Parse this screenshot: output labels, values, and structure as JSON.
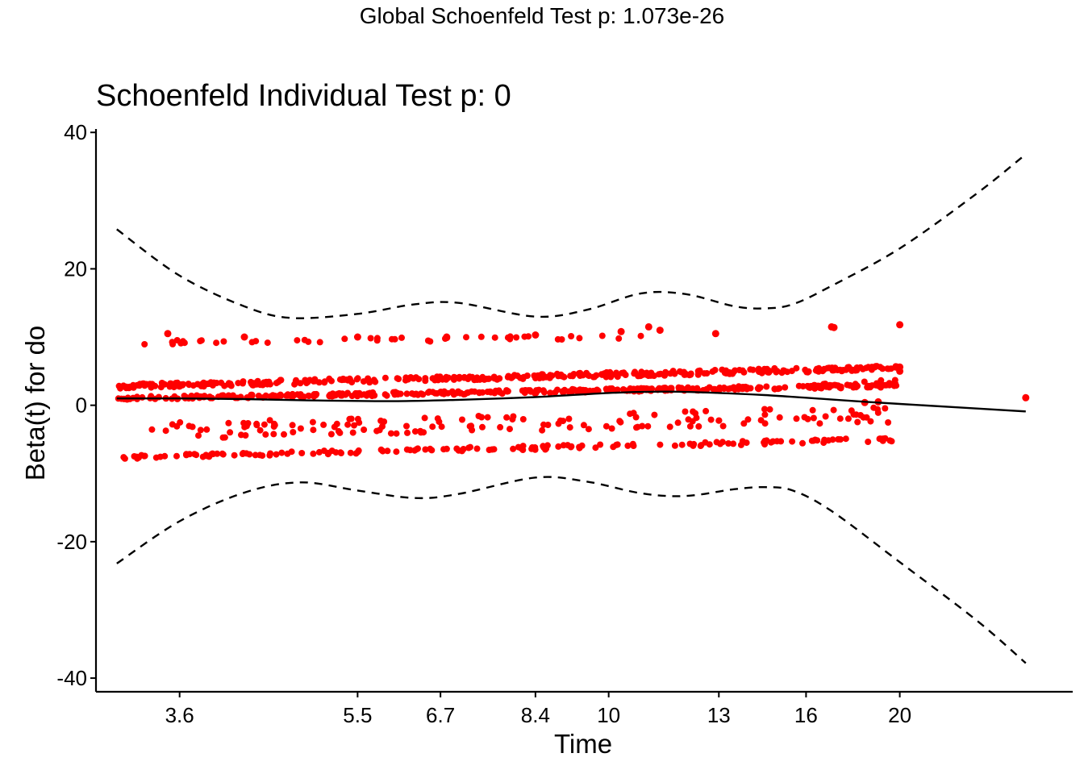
{
  "suptitle": "Global Schoenfeld Test p: 1.073e-26",
  "chart_data": {
    "type": "scatter",
    "title": "Schoenfeld Individual Test p: 0",
    "xlabel": "Time",
    "ylabel": "Beta(t) for do",
    "xscale": "log",
    "xlim": [
      2.95,
      28.5
    ],
    "ylim": [
      -42,
      40.5
    ],
    "x_ticks": [
      3.6,
      5.5,
      6.7,
      8.4,
      10,
      13,
      16,
      20
    ],
    "x_tick_labels": [
      "3.6",
      "5.5",
      "6.7",
      "8.4",
      "10",
      "13",
      "16",
      "20"
    ],
    "y_ticks": [
      -40,
      -20,
      0,
      20,
      40
    ],
    "y_tick_labels": [
      "-40",
      "-20",
      "0",
      "20",
      "40"
    ],
    "grid": false,
    "colors": {
      "points": "#ff0000",
      "fit": "#000000",
      "band": "#000000",
      "axis": "#000000"
    },
    "fit_curve": {
      "name": "",
      "x": [
        3.1,
        3.6,
        4.2,
        5.0,
        6.0,
        7.0,
        8.4,
        10.0,
        11.5,
        13.0,
        14.5,
        16.0,
        18.0,
        20.0,
        27.0
      ],
      "y": [
        1.0,
        1.0,
        0.9,
        0.7,
        0.6,
        0.8,
        1.2,
        1.8,
        2.0,
        1.8,
        1.5,
        1.1,
        0.6,
        0.2,
        -0.9
      ]
    },
    "band_upper": {
      "x": [
        3.1,
        3.6,
        4.2,
        4.7,
        5.5,
        6.3,
        7.0,
        8.4,
        9.5,
        10.8,
        12.0,
        13.5,
        14.5,
        15.5,
        17.0,
        20.0,
        24.0,
        27.0
      ],
      "y": [
        25.8,
        19.0,
        14.5,
        12.8,
        13.4,
        14.8,
        15.0,
        13.0,
        14.0,
        16.4,
        16.3,
        14.5,
        14.2,
        14.8,
        17.5,
        23.0,
        31.0,
        36.8
      ]
    },
    "band_lower": {
      "x": [
        3.1,
        3.6,
        4.2,
        4.8,
        5.5,
        6.3,
        7.0,
        8.4,
        9.5,
        10.8,
        12.0,
        13.5,
        14.5,
        15.5,
        17.0,
        20.0,
        24.0,
        27.0
      ],
      "y": [
        -23.2,
        -17.0,
        -12.8,
        -11.3,
        -12.5,
        -13.6,
        -13.0,
        -10.6,
        -11.2,
        -12.9,
        -13.3,
        -12.3,
        -12.0,
        -12.5,
        -15.5,
        -23.0,
        -31.5,
        -37.8
      ]
    },
    "point_series": [
      {
        "x_start": 3.1,
        "x_end": 20.0,
        "count": 360,
        "y_start": 1.0,
        "y_end": 2.9,
        "jitter": 0.25
      },
      {
        "x_start": 3.1,
        "x_end": 20.0,
        "count": 380,
        "y_start": 2.8,
        "y_end": 5.5,
        "jitter": 0.35
      },
      {
        "x_start": 3.3,
        "x_end": 20.0,
        "count": 150,
        "y_start": -3.8,
        "y_end": -1.3,
        "jitter": 1.2
      },
      {
        "x_start": 3.15,
        "x_end": 20.0,
        "count": 160,
        "y_start": -7.6,
        "y_end": -5.0,
        "jitter": 0.3
      },
      {
        "x_start": 3.3,
        "x_end": 11.0,
        "count": 45,
        "y_start": 9.2,
        "y_end": 10.0,
        "jitter": 0.3
      },
      {
        "x_start": 16.0,
        "x_end": 20.0,
        "count": 20,
        "y_start": 2.5,
        "y_end": 3.4,
        "jitter": 0.5
      }
    ],
    "extra_points": [
      {
        "x": 3.5,
        "y": 10.5
      },
      {
        "x": 4.2,
        "y": 10.0
      },
      {
        "x": 5.5,
        "y": 10.0
      },
      {
        "x": 6.8,
        "y": 10.0
      },
      {
        "x": 8.4,
        "y": 10.3
      },
      {
        "x": 10.3,
        "y": 10.8
      },
      {
        "x": 11.0,
        "y": 11.5
      },
      {
        "x": 11.3,
        "y": 11.0
      },
      {
        "x": 12.9,
        "y": 10.5
      },
      {
        "x": 17.0,
        "y": 11.5
      },
      {
        "x": 17.1,
        "y": 11.4
      },
      {
        "x": 20.0,
        "y": 11.8
      },
      {
        "x": 20.0,
        "y": 5.6
      },
      {
        "x": 20.0,
        "y": 5.0
      },
      {
        "x": 18.4,
        "y": 0.4
      },
      {
        "x": 19.0,
        "y": 0.5
      },
      {
        "x": 27.0,
        "y": 1.1
      }
    ]
  }
}
